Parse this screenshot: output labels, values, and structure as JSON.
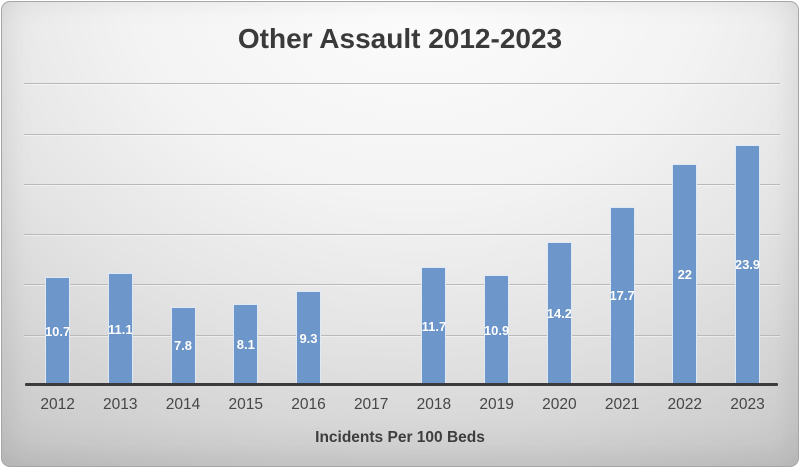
{
  "chart_data": {
    "type": "bar",
    "title": "Other Assault 2012-2023",
    "xlabel": "Incidents Per 100 Beds",
    "ylabel": "",
    "categories": [
      "2012",
      "2013",
      "2014",
      "2015",
      "2016",
      "2017",
      "2018",
      "2019",
      "2020",
      "2021",
      "2022",
      "2023"
    ],
    "values": [
      10.7,
      11.1,
      7.8,
      8.1,
      9.3,
      null,
      11.7,
      10.9,
      14.2,
      17.7,
      22,
      23.9
    ],
    "data_labels": [
      "10.7",
      "11.1",
      "7.8",
      "8.1",
      "9.3",
      "",
      "11.7",
      "10.9",
      "14.2",
      "17.7",
      "22",
      "23.9"
    ],
    "ylim": [
      0,
      30
    ],
    "gridline_step": 5,
    "grid": "horizontal gridlines, no y tick labels",
    "legend": "none",
    "data_label_position": "inside center",
    "bar_color": "#6D96CA",
    "bar_outline_color": "#dfe9f5",
    "data_label_color": "#ffffff",
    "title_color": "#3a3a3a",
    "axis_line_color": "#3b3b3e",
    "gridline_color": "#b9b9b9",
    "tick_label_color": "#474747"
  }
}
